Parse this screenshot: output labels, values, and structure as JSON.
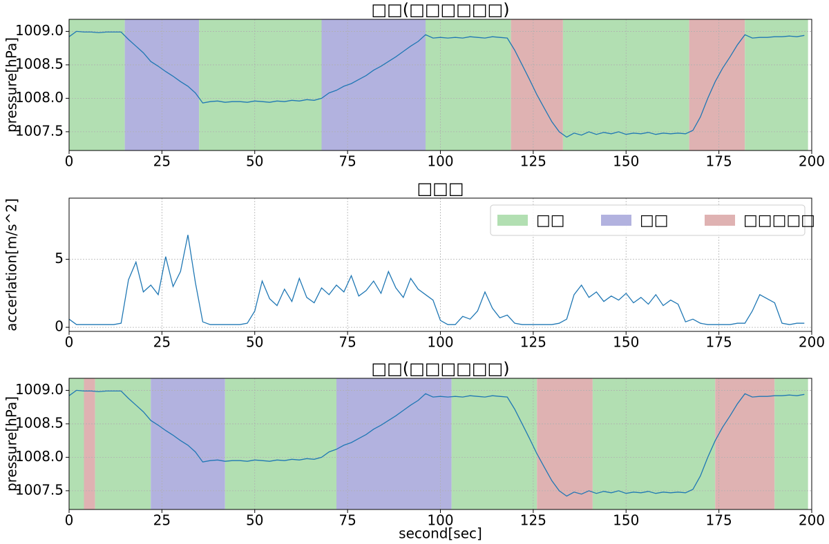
{
  "chart_data": [
    {
      "type": "line",
      "title": "□□(□□□□□□)",
      "ylabel": "pressure[hPa]",
      "x": [
        0,
        2,
        4,
        6,
        8,
        10,
        12,
        14,
        16,
        18,
        20,
        22,
        24,
        26,
        28,
        30,
        32,
        34,
        36,
        38,
        40,
        42,
        44,
        46,
        48,
        50,
        52,
        54,
        56,
        58,
        60,
        62,
        64,
        66,
        68,
        70,
        72,
        74,
        76,
        78,
        80,
        82,
        84,
        86,
        88,
        90,
        92,
        94,
        96,
        98,
        100,
        102,
        104,
        106,
        108,
        110,
        112,
        114,
        116,
        118,
        120,
        122,
        124,
        126,
        128,
        130,
        132,
        134,
        136,
        138,
        140,
        142,
        144,
        146,
        148,
        150,
        152,
        154,
        156,
        158,
        160,
        162,
        164,
        166,
        168,
        170,
        172,
        174,
        176,
        178,
        180,
        182,
        184,
        186,
        188,
        190,
        192,
        194,
        196,
        198
      ],
      "values": [
        1008.92,
        1009.0,
        1008.99,
        1008.99,
        1008.98,
        1008.99,
        1008.99,
        1008.99,
        1008.88,
        1008.78,
        1008.68,
        1008.55,
        1008.48,
        1008.4,
        1008.33,
        1008.25,
        1008.18,
        1008.08,
        1007.93,
        1007.95,
        1007.96,
        1007.94,
        1007.95,
        1007.95,
        1007.94,
        1007.96,
        1007.95,
        1007.94,
        1007.96,
        1007.95,
        1007.97,
        1007.96,
        1007.98,
        1007.97,
        1008.0,
        1008.08,
        1008.12,
        1008.18,
        1008.22,
        1008.28,
        1008.34,
        1008.42,
        1008.48,
        1008.55,
        1008.62,
        1008.7,
        1008.78,
        1008.85,
        1008.95,
        1008.9,
        1008.91,
        1008.9,
        1008.91,
        1008.9,
        1008.92,
        1008.91,
        1008.9,
        1008.92,
        1008.91,
        1008.9,
        1008.72,
        1008.5,
        1008.28,
        1008.05,
        1007.85,
        1007.65,
        1007.5,
        1007.42,
        1007.48,
        1007.45,
        1007.5,
        1007.46,
        1007.49,
        1007.47,
        1007.5,
        1007.46,
        1007.48,
        1007.47,
        1007.49,
        1007.46,
        1007.48,
        1007.47,
        1007.48,
        1007.47,
        1007.52,
        1007.72,
        1008.0,
        1008.25,
        1008.45,
        1008.62,
        1008.8,
        1008.95,
        1008.9,
        1008.91,
        1008.91,
        1008.92,
        1008.92,
        1008.93,
        1008.92,
        1008.94
      ],
      "color": "#1f77b4",
      "regions": [
        {
          "x0": 0,
          "x1": 15,
          "color": "#b2dfb2"
        },
        {
          "x0": 15,
          "x1": 35,
          "color": "#b2b2df"
        },
        {
          "x0": 35,
          "x1": 68,
          "color": "#b2dfb2"
        },
        {
          "x0": 68,
          "x1": 96,
          "color": "#b2b2df"
        },
        {
          "x0": 96,
          "x1": 119,
          "color": "#b2dfb2"
        },
        {
          "x0": 119,
          "x1": 133,
          "color": "#dfb2b2"
        },
        {
          "x0": 133,
          "x1": 167,
          "color": "#b2dfb2"
        },
        {
          "x0": 167,
          "x1": 182,
          "color": "#dfb2b2"
        },
        {
          "x0": 182,
          "x1": 199,
          "color": "#b2dfb2"
        }
      ],
      "xlim": [
        0,
        200
      ],
      "xticks": [
        0,
        25,
        50,
        75,
        100,
        125,
        150,
        175,
        200
      ],
      "ylim": [
        1007.22,
        1009.18
      ],
      "yticks": [
        {
          "value": 1007.5,
          "label": "1007.5"
        },
        {
          "value": 1008,
          "label": "1008.0"
        },
        {
          "value": 1008.5,
          "label": "1008.5"
        },
        {
          "value": 1009,
          "label": "1009.0"
        }
      ],
      "grid": true
    },
    {
      "type": "line",
      "title": "□□□",
      "ylabel": "accerlation[m/s^2]",
      "x": [
        0,
        2,
        4,
        6,
        8,
        10,
        12,
        14,
        16,
        18,
        20,
        22,
        24,
        26,
        28,
        30,
        32,
        34,
        36,
        38,
        40,
        42,
        44,
        46,
        48,
        50,
        52,
        54,
        56,
        58,
        60,
        62,
        64,
        66,
        68,
        70,
        72,
        74,
        76,
        78,
        80,
        82,
        84,
        86,
        88,
        90,
        92,
        94,
        96,
        98,
        100,
        102,
        104,
        106,
        108,
        110,
        112,
        114,
        116,
        118,
        120,
        122,
        124,
        126,
        128,
        130,
        132,
        134,
        136,
        138,
        140,
        142,
        144,
        146,
        148,
        150,
        152,
        154,
        156,
        158,
        160,
        162,
        164,
        166,
        168,
        170,
        172,
        174,
        176,
        178,
        180,
        182,
        184,
        186,
        188,
        190,
        192,
        194,
        196,
        198
      ],
      "values": [
        0.6,
        0.2,
        0.2,
        0.2,
        0.2,
        0.2,
        0.2,
        0.3,
        3.5,
        4.8,
        2.6,
        3.1,
        2.4,
        5.2,
        3.0,
        4.1,
        6.8,
        3.3,
        0.4,
        0.2,
        0.2,
        0.2,
        0.2,
        0.2,
        0.3,
        1.2,
        3.4,
        2.1,
        1.6,
        2.8,
        1.9,
        3.6,
        2.2,
        1.8,
        2.9,
        2.4,
        3.1,
        2.6,
        3.8,
        2.3,
        2.7,
        3.4,
        2.5,
        4.1,
        2.9,
        2.2,
        3.6,
        2.8,
        2.4,
        2.0,
        0.5,
        0.2,
        0.2,
        0.8,
        0.6,
        1.2,
        2.6,
        1.4,
        0.7,
        0.9,
        0.3,
        0.2,
        0.2,
        0.2,
        0.2,
        0.2,
        0.3,
        0.6,
        2.4,
        3.1,
        2.2,
        2.6,
        1.9,
        2.3,
        2.0,
        2.5,
        1.8,
        2.2,
        1.7,
        2.4,
        1.6,
        2.0,
        1.7,
        0.4,
        0.6,
        0.3,
        0.2,
        0.2,
        0.2,
        0.2,
        0.3,
        0.3,
        1.2,
        2.4,
        2.1,
        1.8,
        0.3,
        0.2,
        0.3,
        0.3
      ],
      "color": "#1f77b4",
      "legend": [
        {
          "name": "□□",
          "color": "#b2dfb2"
        },
        {
          "name": "□□",
          "color": "#b2b2df"
        },
        {
          "name": "□□□□□",
          "color": "#dfb2b2"
        }
      ],
      "legend_loc": "upper right",
      "xlim": [
        0,
        200
      ],
      "xticks": [
        0,
        25,
        50,
        75,
        100,
        125,
        150,
        175,
        200
      ],
      "ylim": [
        -0.3,
        9.5
      ],
      "yticks": [
        0,
        5
      ],
      "grid": true
    },
    {
      "type": "line",
      "title": "□□(□□□□□□)",
      "ylabel": "pressure[hPa]",
      "xlabel": "second[sec]",
      "x": [
        0,
        2,
        4,
        6,
        8,
        10,
        12,
        14,
        16,
        18,
        20,
        22,
        24,
        26,
        28,
        30,
        32,
        34,
        36,
        38,
        40,
        42,
        44,
        46,
        48,
        50,
        52,
        54,
        56,
        58,
        60,
        62,
        64,
        66,
        68,
        70,
        72,
        74,
        76,
        78,
        80,
        82,
        84,
        86,
        88,
        90,
        92,
        94,
        96,
        98,
        100,
        102,
        104,
        106,
        108,
        110,
        112,
        114,
        116,
        118,
        120,
        122,
        124,
        126,
        128,
        130,
        132,
        134,
        136,
        138,
        140,
        142,
        144,
        146,
        148,
        150,
        152,
        154,
        156,
        158,
        160,
        162,
        164,
        166,
        168,
        170,
        172,
        174,
        176,
        178,
        180,
        182,
        184,
        186,
        188,
        190,
        192,
        194,
        196,
        198
      ],
      "values": [
        1008.92,
        1009.0,
        1008.99,
        1008.99,
        1008.98,
        1008.99,
        1008.99,
        1008.99,
        1008.88,
        1008.78,
        1008.68,
        1008.55,
        1008.48,
        1008.4,
        1008.33,
        1008.25,
        1008.18,
        1008.08,
        1007.93,
        1007.95,
        1007.96,
        1007.94,
        1007.95,
        1007.95,
        1007.94,
        1007.96,
        1007.95,
        1007.94,
        1007.96,
        1007.95,
        1007.97,
        1007.96,
        1007.98,
        1007.97,
        1008.0,
        1008.08,
        1008.12,
        1008.18,
        1008.22,
        1008.28,
        1008.34,
        1008.42,
        1008.48,
        1008.55,
        1008.62,
        1008.7,
        1008.78,
        1008.85,
        1008.95,
        1008.9,
        1008.91,
        1008.9,
        1008.91,
        1008.9,
        1008.92,
        1008.91,
        1008.9,
        1008.92,
        1008.91,
        1008.9,
        1008.72,
        1008.5,
        1008.28,
        1008.05,
        1007.85,
        1007.65,
        1007.5,
        1007.42,
        1007.48,
        1007.45,
        1007.5,
        1007.46,
        1007.49,
        1007.47,
        1007.5,
        1007.46,
        1007.48,
        1007.47,
        1007.49,
        1007.46,
        1007.48,
        1007.47,
        1007.48,
        1007.47,
        1007.52,
        1007.72,
        1008.0,
        1008.25,
        1008.45,
        1008.62,
        1008.8,
        1008.95,
        1008.9,
        1008.91,
        1008.91,
        1008.92,
        1008.92,
        1008.93,
        1008.92,
        1008.94
      ],
      "color": "#1f77b4",
      "regions": [
        {
          "x0": 0,
          "x1": 4,
          "color": "#b2dfb2"
        },
        {
          "x0": 4,
          "x1": 7,
          "color": "#dfb2b2"
        },
        {
          "x0": 7,
          "x1": 22,
          "color": "#b2dfb2"
        },
        {
          "x0": 22,
          "x1": 42,
          "color": "#b2b2df"
        },
        {
          "x0": 42,
          "x1": 72,
          "color": "#b2dfb2"
        },
        {
          "x0": 72,
          "x1": 103,
          "color": "#b2b2df"
        },
        {
          "x0": 103,
          "x1": 126,
          "color": "#b2dfb2"
        },
        {
          "x0": 126,
          "x1": 141,
          "color": "#dfb2b2"
        },
        {
          "x0": 141,
          "x1": 174,
          "color": "#b2dfb2"
        },
        {
          "x0": 174,
          "x1": 190,
          "color": "#dfb2b2"
        },
        {
          "x0": 190,
          "x1": 199,
          "color": "#b2dfb2"
        }
      ],
      "xlim": [
        0,
        200
      ],
      "xticks": [
        0,
        25,
        50,
        75,
        100,
        125,
        150,
        175,
        200
      ],
      "ylim": [
        1007.22,
        1009.18
      ],
      "yticks": [
        {
          "value": 1007.5,
          "label": "1007.5"
        },
        {
          "value": 1008,
          "label": "1008.0"
        },
        {
          "value": 1008.5,
          "label": "1008.5"
        },
        {
          "value": 1009,
          "label": "1009.0"
        }
      ],
      "grid": true
    }
  ]
}
